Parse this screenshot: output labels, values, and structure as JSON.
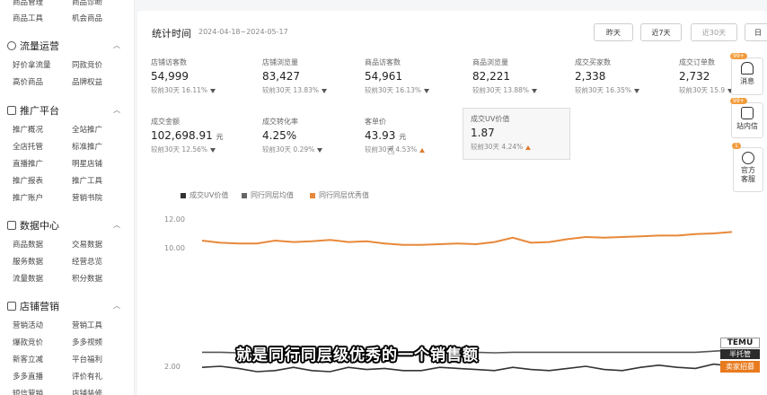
{
  "sidebar": {
    "top_items": [
      "商品管理",
      "商品诊断",
      "商品工具",
      "机会商品"
    ],
    "groups": [
      {
        "title": "流量运营",
        "items": [
          "好价拿流量",
          "同款竞价",
          "高价商品",
          "品牌权益"
        ]
      },
      {
        "title": "推广平台",
        "items": [
          "推广概况",
          "全站推广",
          "全店托管",
          "标准推广",
          "直播推广",
          "明星店铺",
          "推广报表",
          "推广工具",
          "推广账户",
          "营销书院"
        ]
      },
      {
        "title": "数据中心",
        "items": [
          "商品数据",
          "交易数据",
          "服务数据",
          "经营总览",
          "流量数据",
          "积分数据"
        ]
      },
      {
        "title": "店铺营销",
        "items": [
          "营销活动",
          "营销工具",
          "爆款竞价",
          "多多视频",
          "新客立减",
          "平台福利",
          "多多直播",
          "评价有礼",
          "短信营销",
          "店铺装修"
        ]
      }
    ]
  },
  "stats": {
    "title": "统计时间",
    "range": "2024-04-18~2024-05-17",
    "buttons": [
      "昨天",
      "近7天",
      "近30天",
      "日"
    ],
    "metrics": [
      {
        "label": "店铺访客数",
        "value": "54,999",
        "unit": "",
        "cmp": "较前30天 16.11%",
        "dir": "down"
      },
      {
        "label": "店铺浏览量",
        "value": "83,427",
        "unit": "",
        "cmp": "较前30天 13.83%",
        "dir": "down"
      },
      {
        "label": "商品访客数",
        "value": "54,961",
        "unit": "",
        "cmp": "较前30天 16.13%",
        "dir": "down"
      },
      {
        "label": "商品浏览量",
        "value": "82,221",
        "unit": "",
        "cmp": "较前30天 13.88%",
        "dir": "down"
      },
      {
        "label": "成交买家数",
        "value": "2,338",
        "unit": "",
        "cmp": "较前30天 16.35%",
        "dir": "down"
      },
      {
        "label": "成交订单数",
        "value": "2,732",
        "unit": "",
        "cmp": "较前30天 15.9",
        "dir": "down"
      },
      {
        "label": "成交金额",
        "value": "102,698.91",
        "unit": "元",
        "cmp": "较前30天 12.56%",
        "dir": "down"
      },
      {
        "label": "成交转化率",
        "value": "4.25%",
        "unit": "",
        "cmp": "较前30天 0.29%",
        "dir": "down"
      },
      {
        "label": "客单价",
        "value": "43.93",
        "unit": "元",
        "cmp": "较前30天 4.53%",
        "dir": "up"
      },
      {
        "label": "成交UV价值",
        "value": "1.87",
        "unit": "",
        "cmp": "较前30天 4.24%",
        "dir": "up"
      }
    ]
  },
  "legend": [
    {
      "name": "成交UV价值",
      "color": "#333333"
    },
    {
      "name": "同行同层均值",
      "color": "#555555"
    },
    {
      "name": "同行同层优秀值",
      "color": "#e8883a"
    }
  ],
  "chart_data": {
    "type": "line",
    "yticks": [
      "12.00",
      "10.00",
      "2.00"
    ],
    "series": [
      {
        "name": "同行同层优秀值",
        "color": "#e8883a",
        "values": [
          10.5,
          10.35,
          10.3,
          10.3,
          10.5,
          10.4,
          10.45,
          10.55,
          10.4,
          10.45,
          10.3,
          10.2,
          10.2,
          10.25,
          10.3,
          10.25,
          10.4,
          10.7,
          10.35,
          10.4,
          10.6,
          10.75,
          10.7,
          10.75,
          10.8,
          10.85,
          10.85,
          10.95,
          11.0,
          11.1
        ]
      },
      {
        "name": "同行同层均值",
        "color": "#555555",
        "values": [
          3.3,
          3.3,
          3.25,
          3.3,
          3.3,
          3.3,
          3.25,
          3.3,
          3.3,
          3.3,
          3.3,
          3.3,
          3.3,
          3.3,
          3.3,
          3.3,
          3.25,
          3.3,
          3.3,
          3.3,
          3.3,
          3.3,
          3.3,
          3.3,
          3.3,
          3.3,
          3.3,
          3.3,
          3.4,
          3.5
        ]
      },
      {
        "name": "成交UV价值",
        "color": "#333333",
        "values": [
          1.9,
          2.0,
          1.8,
          1.5,
          1.6,
          1.9,
          1.6,
          1.5,
          1.9,
          1.7,
          1.8,
          1.6,
          1.6,
          1.9,
          1.8,
          1.7,
          1.6,
          1.9,
          1.7,
          1.6,
          1.8,
          2.0,
          1.7,
          1.6,
          1.9,
          2.1,
          1.9,
          1.8,
          2.2,
          2.0
        ]
      }
    ]
  },
  "floating": [
    {
      "label": "消息",
      "icon": "bell-icon",
      "badge": "99+"
    },
    {
      "label": "站内信",
      "icon": "mail-icon",
      "badge": "99+"
    },
    {
      "label": "官方客服",
      "icon": "headset-icon",
      "badge": "1"
    }
  ],
  "subtitle": "就是同行同层级优秀的一个销售额",
  "logo": {
    "line1": "TEMU",
    "line2": "半托管",
    "line3": "卖家招募"
  }
}
